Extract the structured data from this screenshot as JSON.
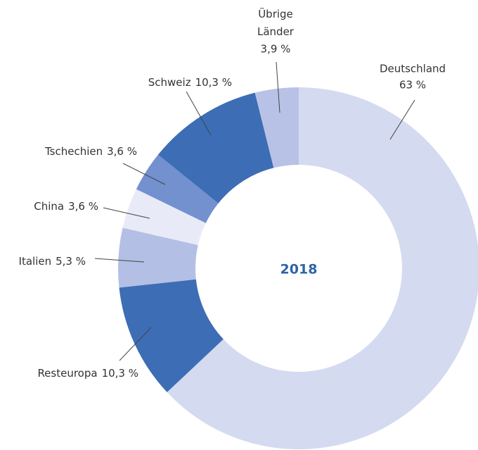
{
  "chart_data": {
    "type": "donut",
    "center_label": "2018",
    "categories": [
      "Deutschland",
      "Resteuropa",
      "Italien",
      "China",
      "Tschechien",
      "Schweiz",
      "Übrige Länder"
    ],
    "values": [
      63,
      10.3,
      5.3,
      3.6,
      3.6,
      10.3,
      3.9
    ],
    "value_labels": [
      "63 %",
      "10,3 %",
      "5,3 %",
      "3,6 %",
      "3,6 %",
      "10,3 %",
      "3,9 %"
    ],
    "colors": [
      "#d4daf0",
      "#3d6db5",
      "#b3bfe4",
      "#e8ebf7",
      "#7390cf",
      "#3d6db5",
      "#b8c2e6"
    ]
  }
}
